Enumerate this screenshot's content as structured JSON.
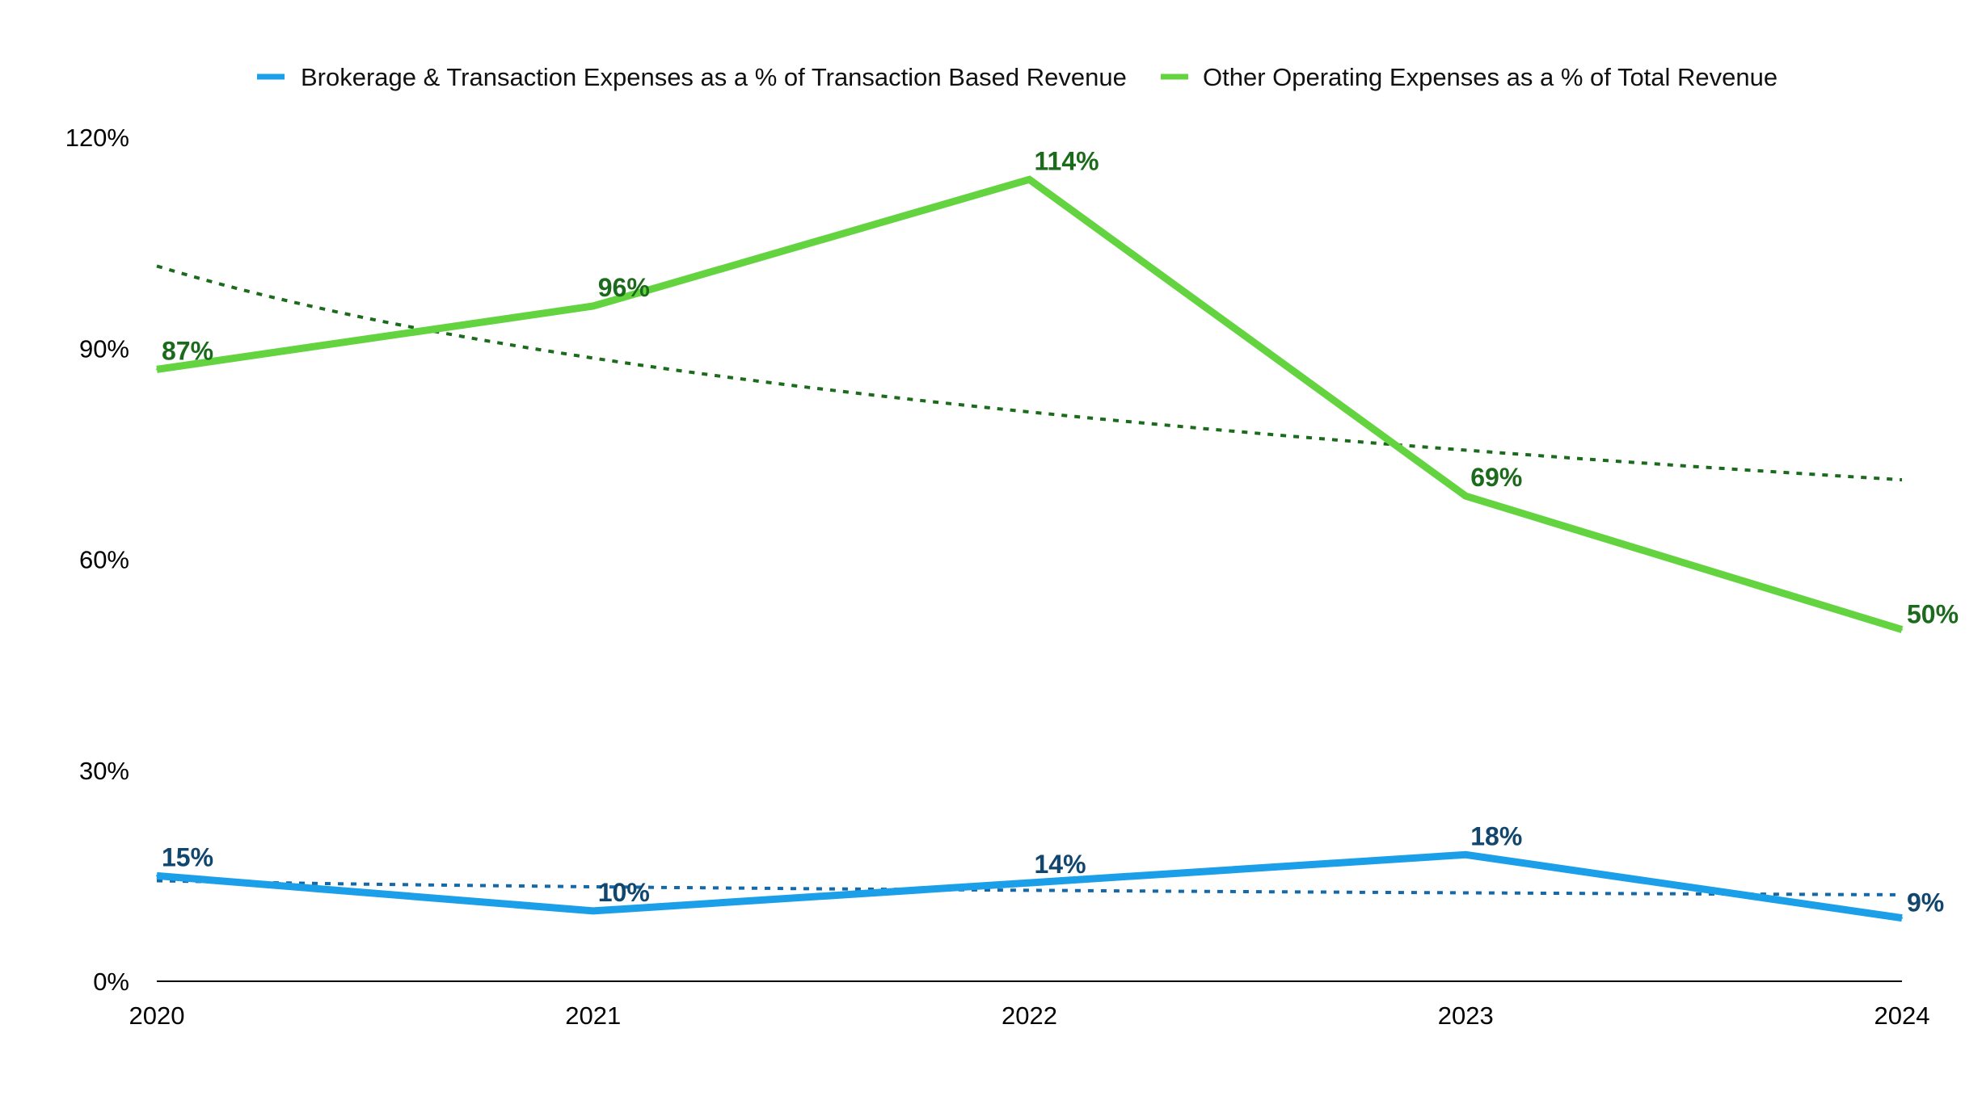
{
  "chart_data": {
    "type": "line",
    "title": "",
    "xlabel": "",
    "ylabel": "",
    "categories": [
      "2020",
      "2021",
      "2022",
      "2023",
      "2024"
    ],
    "ylim": [
      0,
      120
    ],
    "yticks": [
      0,
      30,
      60,
      90,
      120
    ],
    "ytick_labels": [
      "0%",
      "30%",
      "60%",
      "90%",
      "120%"
    ],
    "grid": false,
    "legend_position": "top-center",
    "series": [
      {
        "name": "Brokerage & Transaction Expenses as a % of Transaction Based Revenue",
        "values": [
          15,
          10,
          14,
          18,
          9
        ],
        "labels": [
          "15%",
          "10%",
          "14%",
          "18%",
          "9%"
        ],
        "color": "#1a9fe8",
        "label_color": "#11466e",
        "trendline": {
          "style": "dotted",
          "color": "#1569a8",
          "start": 14.3,
          "end": 12.3
        }
      },
      {
        "name": "Other Operating Expenses as a % of Total Revenue",
        "values": [
          87,
          96,
          114,
          69,
          50
        ],
        "labels": [
          "87%",
          "96%",
          "114%",
          "69%",
          "50%"
        ],
        "color": "#63d43f",
        "label_color": "#1c6b1c",
        "trendline": {
          "style": "dotted",
          "color": "#1c6b1c",
          "start": 101.7,
          "end": 71.3
        }
      }
    ]
  }
}
